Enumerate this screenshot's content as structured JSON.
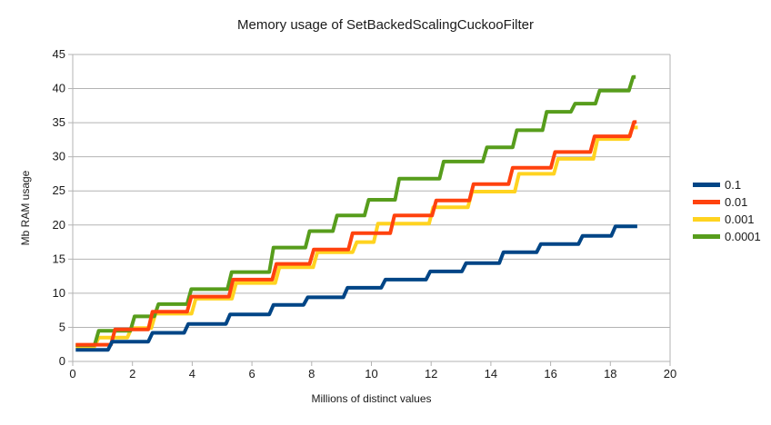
{
  "chart_data": {
    "type": "line",
    "subtype": "step",
    "title": "Memory usage of SetBackedScalingCuckooFilter",
    "xlabel": "Millions of distinct values",
    "ylabel": "Mb RAM usage",
    "xlim": [
      0,
      20
    ],
    "ylim": [
      0,
      45
    ],
    "x_ticks": [
      0,
      2,
      4,
      6,
      8,
      10,
      12,
      14,
      16,
      18,
      20
    ],
    "y_ticks": [
      0,
      5,
      10,
      15,
      20,
      25,
      30,
      35,
      40,
      45
    ],
    "grid": "horizontal",
    "legend_position": "right",
    "series": [
      {
        "name": "0.1",
        "color": "#004586",
        "x_start": 0.1,
        "start_level": 1.7,
        "x_end": 18.9,
        "steps": [
          [
            1.25,
            2.9
          ],
          [
            2.6,
            4.2
          ],
          [
            3.8,
            5.5
          ],
          [
            5.2,
            6.9
          ],
          [
            6.65,
            8.3
          ],
          [
            7.8,
            9.4
          ],
          [
            9.13,
            10.8
          ],
          [
            10.4,
            12.0
          ],
          [
            11.9,
            13.2
          ],
          [
            13.1,
            14.4
          ],
          [
            14.35,
            16.0
          ],
          [
            15.6,
            17.2
          ],
          [
            17.0,
            18.4
          ],
          [
            18.1,
            19.8
          ]
        ]
      },
      {
        "name": "0.01",
        "color": "#FF420E",
        "x_start": 0.1,
        "start_level": 2.45,
        "x_end": 18.88,
        "steps": [
          [
            1.35,
            4.7
          ],
          [
            2.6,
            7.3
          ],
          [
            3.9,
            9.5
          ],
          [
            5.3,
            12.0
          ],
          [
            6.75,
            14.3
          ],
          [
            8.0,
            16.4
          ],
          [
            9.3,
            18.8
          ],
          [
            10.7,
            21.4
          ],
          [
            12.1,
            23.6
          ],
          [
            13.35,
            26.0
          ],
          [
            14.66,
            28.4
          ],
          [
            16.08,
            30.7
          ],
          [
            17.4,
            33.0
          ],
          [
            18.72,
            35.1
          ]
        ]
      },
      {
        "name": "0.001",
        "color": "#FFD320",
        "x_start": 0.1,
        "start_level": 2.2,
        "x_end": 18.92,
        "steps": [
          [
            0.8,
            3.5
          ],
          [
            1.9,
            4.9
          ],
          [
            2.7,
            7.0
          ],
          [
            4.05,
            9.2
          ],
          [
            5.4,
            11.5
          ],
          [
            6.85,
            13.8
          ],
          [
            8.12,
            16.0
          ],
          [
            9.44,
            17.5
          ],
          [
            10.15,
            20.2
          ],
          [
            12.0,
            22.6
          ],
          [
            13.3,
            24.9
          ],
          [
            14.87,
            27.5
          ],
          [
            16.18,
            29.7
          ],
          [
            17.5,
            32.6
          ],
          [
            18.67,
            34.3
          ]
        ]
      },
      {
        "name": "0.0001",
        "color": "#579D1C",
        "x_start": 0.1,
        "start_level": 2.4,
        "x_end": 18.85,
        "steps": [
          [
            0.8,
            4.5
          ],
          [
            2.0,
            6.6
          ],
          [
            2.8,
            8.4
          ],
          [
            3.9,
            10.6
          ],
          [
            5.25,
            13.1
          ],
          [
            6.65,
            16.7
          ],
          [
            7.86,
            19.1
          ],
          [
            8.78,
            21.4
          ],
          [
            9.84,
            23.7
          ],
          [
            10.86,
            26.8
          ],
          [
            12.35,
            29.3
          ],
          [
            13.8,
            31.4
          ],
          [
            14.8,
            33.9
          ],
          [
            15.8,
            36.6
          ],
          [
            16.75,
            37.8
          ],
          [
            17.57,
            39.7
          ],
          [
            18.69,
            41.7
          ]
        ]
      }
    ],
    "draw_order": [
      "0.001",
      "0.0001",
      "0.01",
      "0.1"
    ]
  },
  "colors": {
    "background": "#ffffff",
    "grid": "#b3b3b3",
    "axis": "#b3b3b3",
    "text": "#1a1a1a"
  }
}
